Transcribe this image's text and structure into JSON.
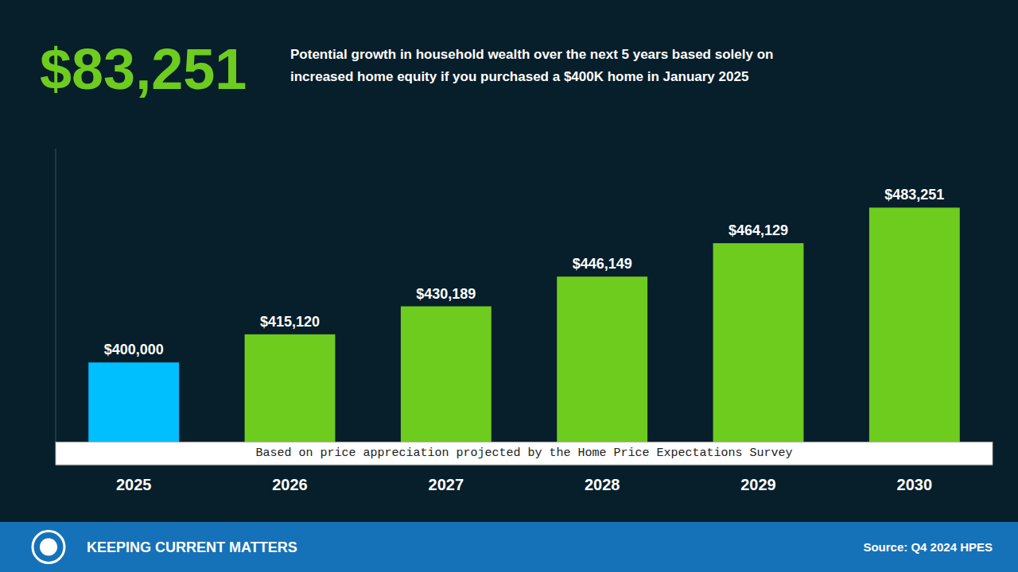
{
  "chart_data": {
    "type": "bar",
    "title": "$83,251",
    "subtitle": [
      "Potential growth in household wealth over the next 5 years based solely on",
      "increased home equity if you purchased a $400K home in January 2025"
    ],
    "categories": [
      "2025",
      "2026",
      "2027",
      "2028",
      "2029",
      "2030"
    ],
    "values": [
      400000,
      415120,
      430189,
      446149,
      464129,
      483251
    ],
    "value_labels": [
      "$400,000",
      "$415,120",
      "$430,189",
      "$446,149",
      "$464,129",
      "$483,251"
    ],
    "colors": [
      "#00BFFF",
      "#6ECC1E",
      "#6ECC1E",
      "#6ECC1E",
      "#6ECC1E",
      "#6ECC1E"
    ],
    "ylim": [
      345000,
      515000
    ],
    "data_labels": true,
    "tick_labels": "x",
    "annotations": [
      "Based on price appreciation projected by the Home Price Expectations Survey",
      "KEEPING CURRENT MATTERS",
      "Source: Q4 2024 HPES"
    ]
  }
}
